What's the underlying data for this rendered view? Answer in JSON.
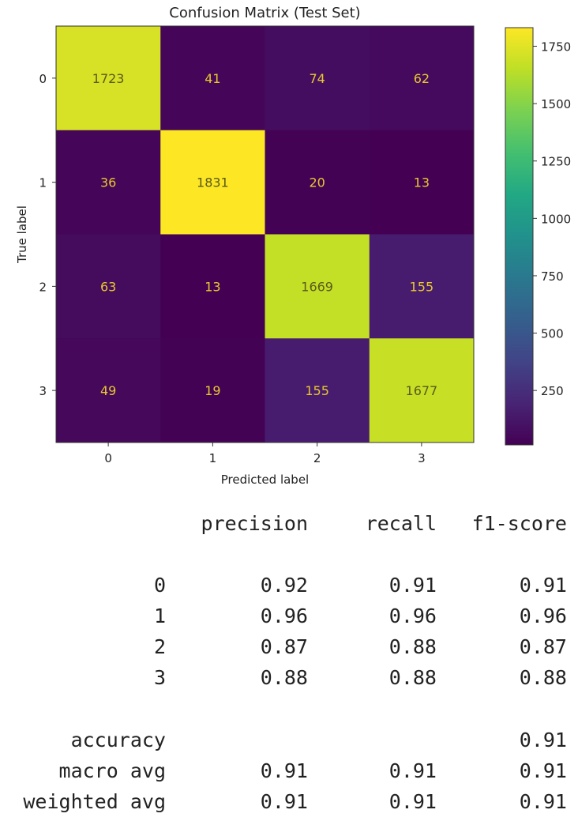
{
  "chart_data": {
    "type": "heatmap",
    "title": "Confusion Matrix (Test Set)",
    "xlabel": "Predicted label",
    "ylabel": "True label",
    "x_ticks": [
      "0",
      "1",
      "2",
      "3"
    ],
    "y_ticks": [
      "0",
      "1",
      "2",
      "3"
    ],
    "values": [
      [
        1723,
        41,
        74,
        62
      ],
      [
        36,
        1831,
        20,
        13
      ],
      [
        63,
        13,
        1669,
        155
      ],
      [
        49,
        19,
        155,
        1677
      ]
    ],
    "colormap": "viridis",
    "vmin": 13,
    "vmax": 1831,
    "colorbar_ticks": [
      250,
      500,
      750,
      1000,
      1250,
      1500,
      1750
    ]
  },
  "report": {
    "headers": [
      "precision",
      "recall",
      "f1-score"
    ],
    "rows": [
      {
        "label": "0",
        "precision": "0.92",
        "recall": "0.91",
        "f1": "0.91"
      },
      {
        "label": "1",
        "precision": "0.96",
        "recall": "0.96",
        "f1": "0.96"
      },
      {
        "label": "2",
        "precision": "0.87",
        "recall": "0.88",
        "f1": "0.87"
      },
      {
        "label": "3",
        "precision": "0.88",
        "recall": "0.88",
        "f1": "0.88"
      }
    ],
    "summary": [
      {
        "label": "accuracy",
        "precision": "",
        "recall": "",
        "f1": "0.91"
      },
      {
        "label": "macro avg",
        "precision": "0.91",
        "recall": "0.91",
        "f1": "0.91"
      },
      {
        "label": "weighted avg",
        "precision": "0.91",
        "recall": "0.91",
        "f1": "0.91"
      }
    ]
  }
}
